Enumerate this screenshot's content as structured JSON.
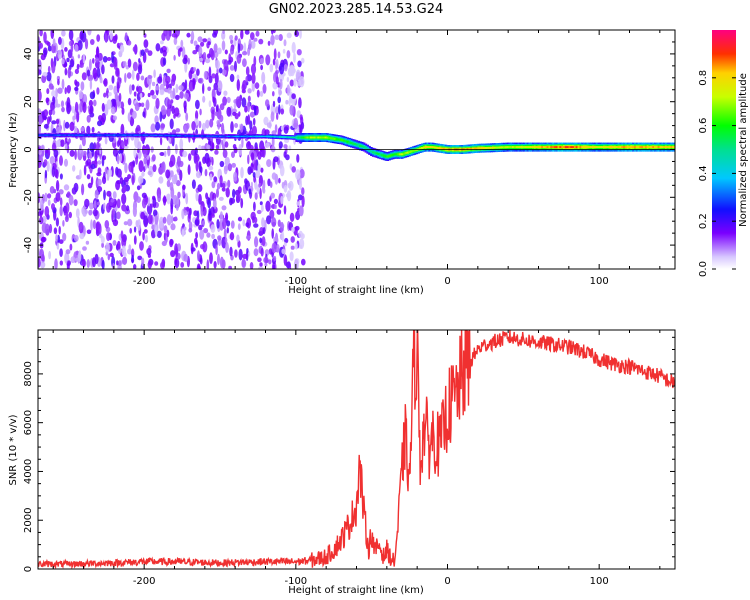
{
  "title": "GN02.2023.285.14.53.G24",
  "chart_data": [
    {
      "type": "heatmap",
      "name": "spectrogram",
      "xlabel": "Height of straight line (km)",
      "ylabel": "Frequency (Hz)",
      "xlim": [
        -270,
        150
      ],
      "ylim": [
        -50,
        50
      ],
      "xticks": [
        -200,
        -100,
        0,
        100
      ],
      "yticks": [
        -40,
        -20,
        0,
        20,
        40
      ],
      "colorbar": {
        "label": "Normalized spectral amplitude",
        "range": [
          0,
          1
        ],
        "ticks": [
          "0.0",
          "0.2",
          "0.4",
          "0.6",
          "0.8"
        ]
      },
      "noise_region_x": [
        -270,
        -95
      ],
      "ridge": {
        "x": [
          -270,
          -200,
          -150,
          -120,
          -100,
          -90,
          -80,
          -70,
          -60,
          -55,
          -50,
          -45,
          -40,
          -35,
          -30,
          -25,
          -20,
          -15,
          -10,
          0,
          10,
          20,
          40,
          60,
          80,
          100,
          120,
          150
        ],
        "freq": [
          6,
          6,
          5.5,
          5.5,
          5,
          5,
          5,
          4,
          2,
          1,
          -1,
          -2,
          -3,
          -2,
          -2,
          -1,
          0,
          1,
          1,
          0,
          0,
          0.5,
          1,
          1,
          1,
          1,
          1,
          1
        ],
        "amplitude": [
          0.3,
          0.3,
          0.3,
          0.4,
          0.5,
          0.7,
          0.7,
          0.6,
          0.55,
          0.5,
          0.5,
          0.55,
          0.6,
          0.6,
          0.7,
          0.7,
          0.7,
          0.8,
          0.75,
          0.85,
          0.85,
          0.8,
          0.7,
          0.8,
          0.9,
          0.75,
          0.85,
          0.8
        ]
      }
    },
    {
      "type": "line",
      "name": "snr",
      "xlabel": "Height of straight line (km)",
      "ylabel": "SNR (10 * v/v)",
      "xlim": [
        -270,
        150
      ],
      "ylim": [
        0,
        9800
      ],
      "xticks": [
        -200,
        -100,
        0,
        100
      ],
      "yticks": [
        0,
        2000,
        4000,
        6000,
        8000
      ],
      "color": "#f03030",
      "x": [
        -270,
        -250,
        -220,
        -200,
        -180,
        -150,
        -120,
        -100,
        -90,
        -80,
        -75,
        -70,
        -65,
        -60,
        -58,
        -55,
        -52,
        -50,
        -48,
        -45,
        -42,
        -40,
        -37,
        -35,
        -33,
        -30,
        -28,
        -25,
        -23,
        -22,
        -20,
        -18,
        -15,
        -12,
        -10,
        -5,
        0,
        5,
        10,
        15,
        20,
        25,
        30,
        40,
        50,
        60,
        70,
        80,
        90,
        100,
        110,
        120,
        130,
        140,
        150
      ],
      "y": [
        200,
        200,
        250,
        300,
        300,
        250,
        300,
        300,
        350,
        500,
        800,
        1200,
        1800,
        2600,
        4300,
        2200,
        800,
        1500,
        700,
        1000,
        500,
        800,
        400,
        300,
        1500,
        4000,
        5500,
        3500,
        7500,
        8500,
        9000,
        4500,
        6000,
        5000,
        5500,
        5000,
        6500,
        7000,
        8000,
        8500,
        9000,
        9200,
        9300,
        9500,
        9400,
        9300,
        9200,
        9100,
        8900,
        8600,
        8400,
        8300,
        8100,
        7900,
        7600
      ]
    }
  ]
}
